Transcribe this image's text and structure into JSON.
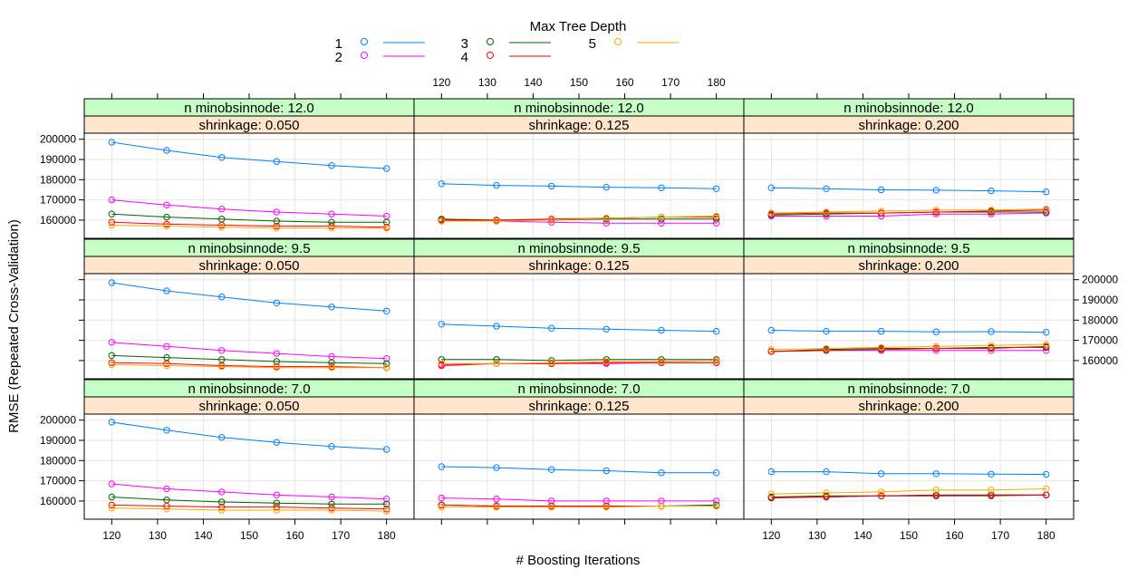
{
  "chart_data": {
    "type": "line",
    "xlabel": "# Boosting Iterations",
    "ylabel": "RMSE (Repeated Cross-Validation)",
    "x": [
      120,
      132,
      144,
      156,
      168,
      180
    ],
    "xlim": [
      114,
      186
    ],
    "ylim": [
      151000,
      203000
    ],
    "x_ticks": [
      120,
      130,
      140,
      150,
      160,
      170,
      180
    ],
    "y_ticks": [
      160000,
      170000,
      180000,
      190000,
      200000
    ],
    "y_tick_labels": [
      "160000",
      "170000",
      "180000",
      "190000",
      "200000"
    ],
    "grid": true,
    "legend": {
      "title": "Max Tree Depth",
      "position": "top",
      "entries": [
        {
          "label": "1",
          "color": "#0080ff"
        },
        {
          "label": "2",
          "color": "#ff00ff"
        },
        {
          "label": "3",
          "color": "#006400"
        },
        {
          "label": "4",
          "color": "#ff0000"
        },
        {
          "label": "5",
          "color": "#ffa500"
        }
      ]
    },
    "strip_colors": {
      "top": "#c6ffc6",
      "bottom": "#ffe5cc"
    },
    "panels": [
      {
        "minobs_label": "n minobsinnode: 12.0",
        "shrink_label": "shrinkage: 0.050",
        "series": [
          [
            198500,
            194500,
            191000,
            189000,
            187000,
            185500
          ],
          [
            170000,
            167500,
            165500,
            164000,
            163000,
            162000
          ],
          [
            163000,
            161500,
            160500,
            159500,
            159000,
            159000
          ],
          [
            159000,
            158000,
            157500,
            157000,
            157000,
            156500
          ],
          [
            157500,
            157000,
            156500,
            156000,
            156000,
            156000
          ]
        ]
      },
      {
        "minobs_label": "n minobsinnode: 12.0",
        "shrink_label": "shrinkage: 0.125",
        "series": [
          [
            178000,
            177200,
            176800,
            176300,
            176000,
            175500
          ],
          [
            160000,
            159500,
            159000,
            158500,
            158500,
            158500
          ],
          [
            160500,
            160000,
            160000,
            160500,
            160500,
            160500
          ],
          [
            160000,
            160000,
            160500,
            161000,
            161500,
            161500
          ],
          [
            159500,
            159500,
            160000,
            161000,
            161500,
            162000
          ]
        ]
      },
      {
        "minobs_label": "n minobsinnode: 12.0",
        "shrink_label": "shrinkage: 0.200",
        "series": [
          [
            176000,
            175500,
            175000,
            174800,
            174500,
            174000
          ],
          [
            162000,
            162000,
            162000,
            163000,
            163000,
            163500
          ],
          [
            162500,
            163000,
            163500,
            164000,
            164000,
            164000
          ],
          [
            163000,
            163500,
            163500,
            164000,
            164500,
            165000
          ],
          [
            163500,
            164000,
            164500,
            165000,
            165000,
            165500
          ]
        ]
      },
      {
        "minobs_label": "n minobsinnode:  9.5",
        "shrink_label": "shrinkage: 0.050",
        "series": [
          [
            198500,
            194500,
            191500,
            188500,
            186500,
            184500
          ],
          [
            169000,
            167000,
            165000,
            163500,
            162000,
            161000
          ],
          [
            162500,
            161500,
            160500,
            159500,
            159000,
            158500
          ],
          [
            159000,
            158500,
            157500,
            157000,
            157000,
            156500
          ],
          [
            158000,
            157500,
            157000,
            156500,
            156500,
            156500
          ]
        ]
      },
      {
        "minobs_label": "n minobsinnode:  9.5",
        "shrink_label": "shrinkage: 0.125",
        "series": [
          [
            178000,
            177000,
            176000,
            175500,
            175000,
            174500
          ],
          [
            158000,
            158500,
            158500,
            158500,
            159000,
            159000
          ],
          [
            160500,
            160500,
            160000,
            160500,
            160500,
            160500
          ],
          [
            157500,
            158500,
            158500,
            159000,
            159000,
            159000
          ],
          [
            158500,
            158500,
            159000,
            159500,
            159500,
            160000
          ]
        ]
      },
      {
        "minobs_label": "n minobsinnode:  9.5",
        "shrink_label": "shrinkage: 0.200",
        "series": [
          [
            175000,
            174500,
            174500,
            174200,
            174300,
            174000
          ],
          [
            164500,
            165000,
            165000,
            165000,
            165000,
            165000
          ],
          [
            164500,
            165500,
            166000,
            166000,
            166500,
            166500
          ],
          [
            164500,
            165000,
            165500,
            166000,
            166000,
            167000
          ],
          [
            165500,
            166000,
            166500,
            167000,
            167500,
            168000
          ]
        ]
      },
      {
        "minobs_label": "n minobsinnode:  7.0",
        "shrink_label": "shrinkage: 0.050",
        "series": [
          [
            199000,
            195000,
            191500,
            189000,
            187000,
            185500
          ],
          [
            168500,
            166000,
            164500,
            163000,
            162000,
            161000
          ],
          [
            162000,
            160500,
            159500,
            159000,
            158500,
            158500
          ],
          [
            158000,
            157500,
            157000,
            157000,
            156500,
            156000
          ],
          [
            156500,
            156000,
            155500,
            155500,
            155500,
            155000
          ]
        ]
      },
      {
        "minobs_label": "n minobsinnode:  7.0",
        "shrink_label": "shrinkage: 0.125",
        "series": [
          [
            177000,
            176500,
            175500,
            175000,
            174000,
            174000
          ],
          [
            161500,
            161000,
            160000,
            160000,
            160000,
            160000
          ],
          [
            158000,
            157500,
            157500,
            157500,
            157500,
            158000
          ],
          [
            158000,
            157500,
            157500,
            157500,
            157500,
            157500
          ],
          [
            157000,
            157000,
            157000,
            157000,
            157500,
            157500
          ]
        ]
      },
      {
        "minobs_label": "n minobsinnode:  7.0",
        "shrink_label": "shrinkage: 0.200",
        "series": [
          [
            174500,
            174500,
            173500,
            173500,
            173300,
            173200
          ],
          [
            162000,
            162000,
            162500,
            162500,
            163000,
            163000
          ],
          [
            162000,
            162500,
            162500,
            163000,
            163000,
            163000
          ],
          [
            161500,
            162000,
            162500,
            162500,
            162500,
            163000
          ],
          [
            163500,
            164000,
            164500,
            165500,
            165500,
            166000
          ]
        ]
      }
    ]
  }
}
